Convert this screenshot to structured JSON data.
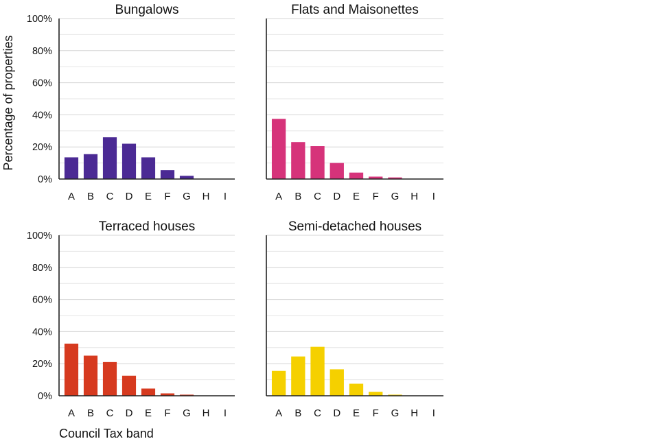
{
  "chart_data": {
    "type": "bar",
    "ylabel": "Percentage of properties",
    "xlabel": "Council Tax band",
    "ylim": [
      0,
      100
    ],
    "yticks": [
      "0%",
      "20%",
      "40%",
      "60%",
      "80%",
      "100%"
    ],
    "y_tick_values": [
      0,
      20,
      40,
      60,
      80,
      100
    ],
    "grid": true,
    "categories": [
      "A",
      "B",
      "C",
      "D",
      "E",
      "F",
      "G",
      "H",
      "I"
    ],
    "panels": [
      {
        "title": "Bungalows",
        "color": "#4b2a94",
        "values": [
          13.5,
          15.5,
          26,
          22,
          13.5,
          5.5,
          2,
          0.2,
          0
        ]
      },
      {
        "title": "Flats and Maisonettes",
        "color": "#d6337a",
        "values": [
          37.5,
          23,
          20.5,
          10,
          4,
          1.5,
          1,
          0.2,
          0
        ]
      },
      {
        "title": "Terraced houses",
        "color": "#d63a1f",
        "values": [
          32.5,
          25,
          21,
          12.5,
          4.5,
          1.5,
          0.7,
          0.1,
          0
        ]
      },
      {
        "title": "Semi-detached houses",
        "color": "#f5d000",
        "values": [
          15.5,
          24.5,
          30.5,
          16.5,
          7.5,
          2.5,
          0.7,
          0.1,
          0
        ]
      }
    ]
  }
}
